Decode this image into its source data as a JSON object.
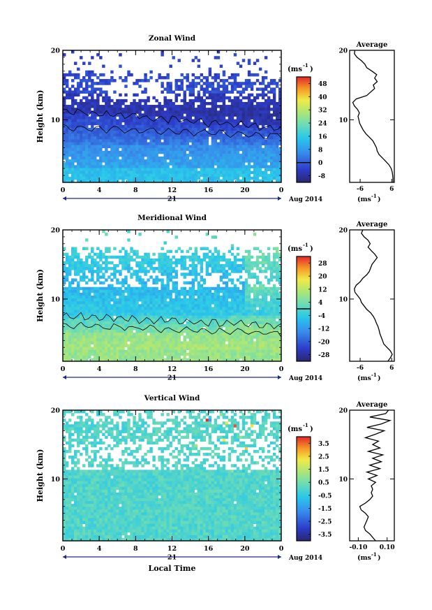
{
  "chart_data": [
    {
      "type": "heatmap",
      "title": "Zonal Wind",
      "xlabel": "",
      "ylabel": "Height (km)",
      "x_ticks": [
        "0",
        "4",
        "8",
        "12",
        "16",
        "20",
        "0"
      ],
      "y_ticks": [
        "10",
        "20"
      ],
      "xlim": [
        0,
        24
      ],
      "ylim": [
        1,
        20
      ],
      "date_axis": {
        "day": "21",
        "month_year": "Aug 2014"
      },
      "colorbar": {
        "unit": "(ms",
        "unit_exp": "-1",
        "ticks": [
          "48",
          "40",
          "32",
          "24",
          "16",
          "8",
          "0",
          "-8"
        ],
        "min": -12,
        "max": 52,
        "contour_value": 0
      },
      "profile": {
        "title": "Average",
        "xlabel": "(ms",
        "xlabel_exp": "-1",
        "x_ticks": [
          "-6",
          "6"
        ],
        "y_ticks": [
          "10",
          "20"
        ],
        "xlim": [
          -10,
          7
        ],
        "height_km": [
          1,
          1.5,
          2,
          2.5,
          3,
          3.5,
          4,
          4.5,
          5,
          5.5,
          6,
          6.5,
          7,
          7.5,
          8,
          8.5,
          9,
          9.5,
          10,
          10.5,
          11,
          11.5,
          12,
          12.5,
          13,
          13.5,
          14,
          14.5,
          15,
          15.5,
          16,
          16.5,
          17,
          17.5,
          18,
          18.5,
          19,
          19.5,
          20
        ],
        "values": [
          6.5,
          6.5,
          6.4,
          6.2,
          5.8,
          5.0,
          3.8,
          2.5,
          1.2,
          0.5,
          0.2,
          -0.5,
          -1.2,
          -2.5,
          -3.8,
          -4.8,
          -5.5,
          -6.2,
          -6.5,
          -6.8,
          -6.3,
          -7.0,
          -8.2,
          -8.8,
          -7.5,
          -3.5,
          -2.0,
          -0.5,
          -1.0,
          0.5,
          -0.5,
          0.3,
          -1.5,
          -3.5,
          -4.2,
          -5.5,
          -7.2,
          -8.2,
          -8.0
        ]
      }
    },
    {
      "type": "heatmap",
      "title": "Meridional Wind",
      "xlabel": "",
      "ylabel": "Height (km)",
      "x_ticks": [
        "0",
        "4",
        "8",
        "12",
        "16",
        "20",
        "0"
      ],
      "y_ticks": [
        "10",
        "20"
      ],
      "xlim": [
        0,
        24
      ],
      "ylim": [
        1,
        20
      ],
      "date_axis": {
        "day": "21",
        "month_year": "Aug 2014"
      },
      "colorbar": {
        "unit": "(ms",
        "unit_exp": "-1",
        "ticks": [
          "28",
          "20",
          "12",
          "4",
          "-4",
          "-12",
          "-20",
          "-28"
        ],
        "min": -32,
        "max": 32,
        "contour_value": 0
      },
      "profile": {
        "title": "Average",
        "xlabel": "(ms",
        "xlabel_exp": "-1",
        "x_ticks": [
          "-6",
          "6"
        ],
        "y_ticks": [
          "10",
          "20"
        ],
        "xlim": [
          -10,
          7
        ],
        "height_km": [
          1,
          1.5,
          2,
          2.5,
          3,
          3.5,
          4,
          4.5,
          5,
          5.5,
          6,
          6.5,
          7,
          7.5,
          8,
          8.5,
          9,
          9.5,
          10,
          10.5,
          11,
          11.5,
          12,
          12.5,
          13,
          13.5,
          14,
          14.5,
          15,
          15.5,
          16,
          16.5,
          17,
          17.5,
          18,
          18.5,
          19,
          19.5,
          20
        ],
        "values": [
          4.5,
          5.5,
          6.2,
          5.5,
          4.2,
          3.0,
          2.5,
          2.0,
          1.5,
          1.2,
          0.8,
          0.2,
          -0.3,
          -1.0,
          -2.0,
          -3.5,
          -4.5,
          -5.5,
          -6.0,
          -7.0,
          -8.0,
          -8.2,
          -7.5,
          -6.0,
          -5.0,
          -3.5,
          -2.5,
          -2.0,
          -1.5,
          -0.5,
          0.5,
          -0.5,
          -1.8,
          -3.0,
          -2.2,
          -3.0,
          -4.5,
          -5.5,
          -5.0
        ]
      }
    },
    {
      "type": "heatmap",
      "title": "Vertical Wind",
      "xlabel": "Local Time",
      "ylabel": "Height (km)",
      "x_ticks": [
        "0",
        "4",
        "8",
        "12",
        "16",
        "20",
        "0"
      ],
      "y_ticks": [
        "10",
        "20"
      ],
      "xlim": [
        0,
        24
      ],
      "ylim": [
        1,
        20
      ],
      "date_axis": {
        "day": "21",
        "month_year": "Aug 2014"
      },
      "colorbar": {
        "unit": "(ms",
        "unit_exp": "-1",
        "ticks": [
          "3.5",
          "2.5",
          "1.5",
          "0.5",
          "-0.5",
          "-1.5",
          "-2.5",
          "-3.5"
        ],
        "min": -4,
        "max": 4
      },
      "profile": {
        "title": "Average",
        "xlabel": "(ms",
        "xlabel_exp": "-1",
        "x_ticks": [
          "-0.10",
          "0.10"
        ],
        "y_ticks": [
          "10",
          "20"
        ],
        "xlim": [
          -0.16,
          0.15
        ],
        "height_km": [
          1,
          1.5,
          2,
          2.5,
          3,
          3.5,
          4,
          4.5,
          5,
          5.5,
          6,
          6.5,
          7,
          7.5,
          8,
          8.5,
          9,
          9.5,
          10,
          10.5,
          11,
          11.5,
          12,
          12.5,
          13,
          13.5,
          14,
          14.5,
          15,
          15.5,
          16,
          16.5,
          17,
          17.5,
          18,
          18.5,
          19,
          19.5,
          20
        ],
        "values": [
          0.02,
          0.0,
          -0.02,
          -0.05,
          -0.06,
          -0.05,
          -0.04,
          -0.03,
          -0.05,
          -0.08,
          -0.09,
          -0.05,
          -0.02,
          0.0,
          -0.01,
          0.0,
          -0.01,
          0.02,
          -0.03,
          0.03,
          -0.04,
          0.05,
          -0.02,
          0.06,
          0.0,
          0.07,
          -0.03,
          0.05,
          0.0,
          0.04,
          -0.05,
          0.02,
          0.08,
          -0.04,
          0.06,
          0.12,
          -0.02,
          0.09,
          0.11
        ]
      }
    }
  ]
}
